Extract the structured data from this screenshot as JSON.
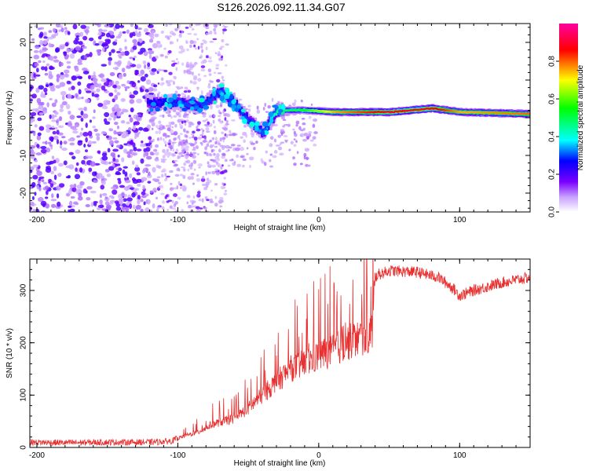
{
  "title": "S126.2026.092.11.34.G07",
  "chart_data": [
    {
      "type": "heatmap",
      "xlabel": "Height of straight line (km)",
      "ylabel": "Frequency (Hz)",
      "xlim": [
        -205,
        150
      ],
      "ylim": [
        -25,
        25
      ],
      "xticks": [
        -200,
        -100,
        0,
        100
      ],
      "xtick_labels": [
        "-200",
        "-100",
        "0",
        "100"
      ],
      "yticks": [
        20,
        10,
        0,
        -10,
        -20
      ],
      "ytick_labels": [
        "20",
        "10",
        "0",
        "-10",
        "-20"
      ],
      "colorbar": {
        "label": "Normalized spectral amplitude",
        "range": [
          0,
          1
        ],
        "ticks": [
          0.0,
          0.2,
          0.4,
          0.6,
          0.8
        ],
        "tick_labels": [
          "0.0",
          "0.2",
          "0.4",
          "0.6",
          "0.8"
        ],
        "colors": [
          "#ffffff",
          "#c8a0ff",
          "#7a00ff",
          "#0000ff",
          "#00ffff",
          "#00ff00",
          "#ffff00",
          "#ff0000",
          "#ff00a0"
        ]
      },
      "ridge": [
        {
          "x": -120,
          "y": 4,
          "amp": 0.25
        },
        {
          "x": -100,
          "y": 4,
          "amp": 0.3
        },
        {
          "x": -85,
          "y": 3,
          "amp": 0.3
        },
        {
          "x": -70,
          "y": 7,
          "amp": 0.3
        },
        {
          "x": -60,
          "y": 4,
          "amp": 0.3
        },
        {
          "x": -50,
          "y": -1,
          "amp": 0.3
        },
        {
          "x": -40,
          "y": -4,
          "amp": 0.3
        },
        {
          "x": -30,
          "y": 2,
          "amp": 0.45
        },
        {
          "x": -10,
          "y": 2,
          "amp": 0.55
        },
        {
          "x": 10,
          "y": 1.5,
          "amp": 0.75
        },
        {
          "x": 50,
          "y": 1.5,
          "amp": 0.9
        },
        {
          "x": 80,
          "y": 2.5,
          "amp": 0.9
        },
        {
          "x": 100,
          "y": 1.5,
          "amp": 0.75
        },
        {
          "x": 150,
          "y": 1,
          "amp": 0.8
        }
      ]
    },
    {
      "type": "line",
      "xlabel": "Height of straight line (km)",
      "ylabel": "SNR (10 * v/v)",
      "xlim": [
        -205,
        150
      ],
      "ylim": [
        0,
        360
      ],
      "xticks": [
        -200,
        -100,
        0,
        100
      ],
      "xtick_labels": [
        "-200",
        "-100",
        "0",
        "100"
      ],
      "yticks": [
        0,
        100,
        200,
        300
      ],
      "ytick_labels": [
        "0",
        "100",
        "200",
        "300"
      ],
      "color": "#e83030",
      "series": [
        {
          "name": "SNR",
          "x": [
            -205,
            -180,
            -150,
            -120,
            -105,
            -95,
            -85,
            -75,
            -60,
            -50,
            -40,
            -30,
            -20,
            -10,
            0,
            10,
            20,
            30,
            38,
            40,
            42,
            50,
            70,
            85,
            95,
            100,
            110,
            130,
            150
          ],
          "y": [
            10,
            9,
            10,
            10,
            12,
            22,
            30,
            45,
            55,
            75,
            100,
            125,
            150,
            160,
            175,
            185,
            200,
            210,
            220,
            325,
            330,
            338,
            335,
            325,
            305,
            290,
            300,
            315,
            325
          ]
        }
      ]
    }
  ]
}
